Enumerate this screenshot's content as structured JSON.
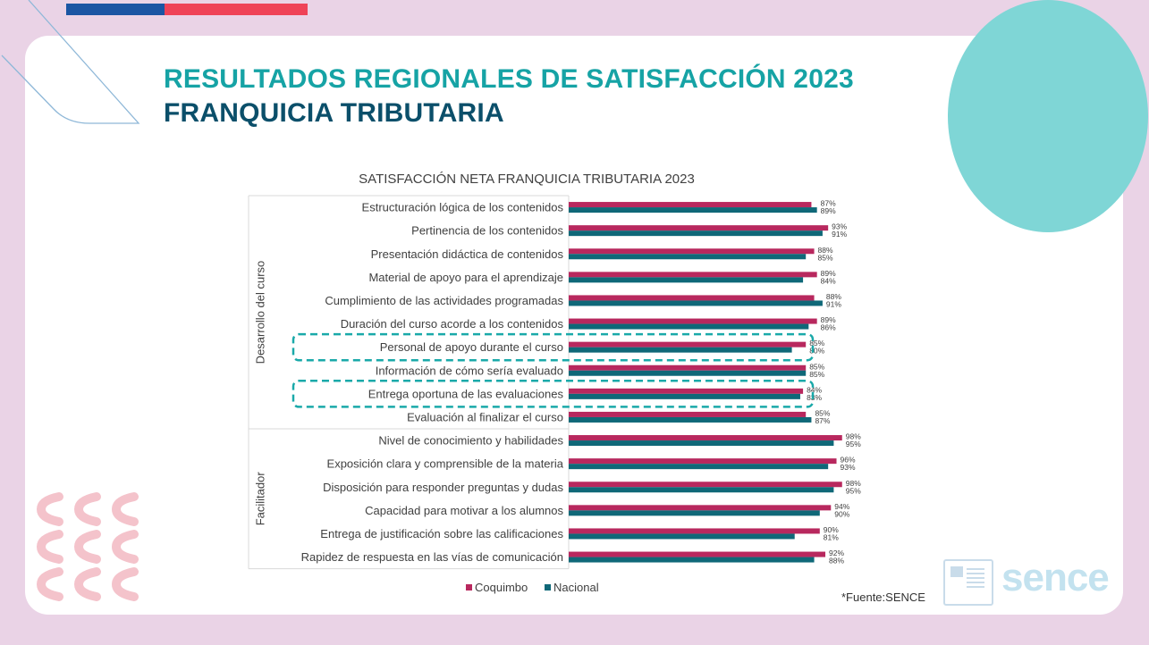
{
  "slide": {
    "title": "RESULTADOS REGIONALES DE SATISFACCIÓN 2023",
    "subtitle": "FRANQUICIA TRIBUTARIA",
    "source": "*Fuente:SENCE",
    "logo_text": "sence",
    "colors": {
      "teal_title": "#16a3a5",
      "navy_title": "#0b4f6a",
      "circle": "#7fd6d6",
      "background": "#ead3e6",
      "highlight_box": "#1aa9a9"
    }
  },
  "chart_data": {
    "type": "bar",
    "orientation": "horizontal",
    "title": "SATISFACCIÓN NETA FRANQUICIA TRIBUTARIA 2023",
    "groups": [
      {
        "name": "Desarrollo del curso",
        "count": 10
      },
      {
        "name": "Facilitador",
        "count": 6
      }
    ],
    "categories": [
      "Estructuración lógica de los contenidos",
      "Pertinencia de los contenidos",
      "Presentación didáctica de contenidos",
      "Material de apoyo para el aprendizaje",
      "Cumplimiento de las actividades programadas",
      "Duración del curso acorde a los contenidos",
      "Personal de apoyo durante el curso",
      "Información de cómo sería evaluado",
      "Entrega oportuna de las evaluaciones",
      "Evaluación al finalizar el curso",
      "Nivel de conocimiento y habilidades",
      "Exposición clara y comprensible de la materia",
      "Disposición para responder preguntas y dudas",
      "Capacidad para motivar a los alumnos",
      "Entrega de justificación sobre las calificaciones",
      "Rapidez de respuesta en las vías de comunicación"
    ],
    "series": [
      {
        "name": "Coquimbo",
        "color": "#b8285e",
        "values": [
          87,
          93,
          88,
          89,
          88,
          89,
          85,
          85,
          84,
          85,
          98,
          96,
          98,
          94,
          90,
          92
        ]
      },
      {
        "name": "Nacional",
        "color": "#0f6878",
        "values": [
          89,
          91,
          85,
          84,
          91,
          86,
          80,
          85,
          83,
          87,
          95,
          93,
          95,
          90,
          81,
          88
        ]
      }
    ],
    "value_suffix": "%",
    "xlim": [
      0,
      100
    ],
    "highlighted_categories": [
      6,
      8
    ],
    "legend_position": "bottom"
  }
}
